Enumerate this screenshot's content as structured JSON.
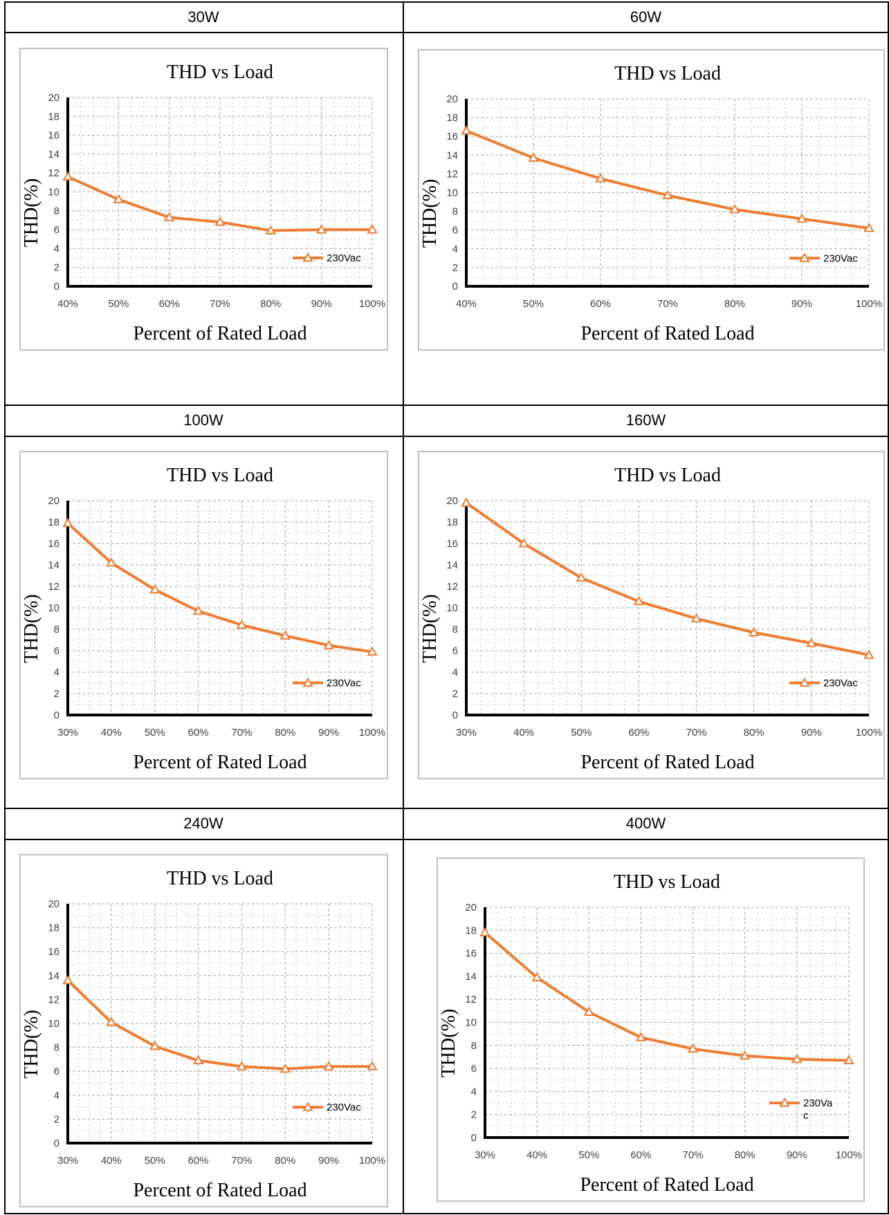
{
  "colors": {
    "series": "#ed7d31",
    "grid": "#a6a6a6",
    "axis": "#000000",
    "border": "#bfbfbf"
  },
  "cells": [
    {
      "header": "30W"
    },
    {
      "header": "60W"
    },
    {
      "header": "100W"
    },
    {
      "header": "160W"
    },
    {
      "header": "240W"
    },
    {
      "header": "400W"
    }
  ],
  "chart_data": [
    {
      "type": "line",
      "title": "THD vs Load",
      "xlabel": "Percent of Rated Load",
      "ylabel": "THD(%)",
      "categories": [
        "40%",
        "50%",
        "60%",
        "70%",
        "80%",
        "90%",
        "100%"
      ],
      "yticks": [
        "0",
        "2",
        "4",
        "6",
        "8",
        "10",
        "12",
        "14",
        "16",
        "18",
        "20"
      ],
      "ylim": [
        0,
        20
      ],
      "grid": true,
      "legend_position": "bottom-right",
      "series": [
        {
          "name": "230Vac",
          "values": [
            11.6,
            9.2,
            7.3,
            6.8,
            5.9,
            6.0,
            6.0
          ]
        }
      ]
    },
    {
      "type": "line",
      "title": "THD vs Load",
      "xlabel": "Percent of Rated Load",
      "ylabel": "THD(%)",
      "categories": [
        "40%",
        "50%",
        "60%",
        "70%",
        "80%",
        "90%",
        "100%"
      ],
      "yticks": [
        "0",
        "2",
        "4",
        "6",
        "8",
        "10",
        "12",
        "14",
        "16",
        "18",
        "20"
      ],
      "ylim": [
        0,
        20
      ],
      "grid": true,
      "legend_position": "bottom-right",
      "series": [
        {
          "name": "230Vac",
          "values": [
            16.6,
            13.7,
            11.5,
            9.7,
            8.2,
            7.2,
            6.2
          ]
        }
      ]
    },
    {
      "type": "line",
      "title": "THD vs Load",
      "xlabel": "Percent of Rated Load",
      "ylabel": "THD(%)",
      "categories": [
        "30%",
        "40%",
        "50%",
        "60%",
        "70%",
        "80%",
        "90%",
        "100%"
      ],
      "yticks": [
        "0",
        "2",
        "4",
        "6",
        "8",
        "10",
        "12",
        "14",
        "16",
        "18",
        "20"
      ],
      "ylim": [
        0,
        20
      ],
      "grid": true,
      "legend_position": "bottom-right",
      "series": [
        {
          "name": "230Vac",
          "values": [
            17.9,
            14.2,
            11.7,
            9.7,
            8.4,
            7.4,
            6.5,
            5.9
          ]
        }
      ]
    },
    {
      "type": "line",
      "title": "THD vs Load",
      "xlabel": "Percent of Rated Load",
      "ylabel": "THD(%)",
      "categories": [
        "30%",
        "40%",
        "50%",
        "60%",
        "70%",
        "80%",
        "90%",
        "100%"
      ],
      "yticks": [
        "0",
        "2",
        "4",
        "6",
        "8",
        "10",
        "12",
        "14",
        "16",
        "18",
        "20"
      ],
      "ylim": [
        0,
        20
      ],
      "grid": true,
      "legend_position": "bottom-right",
      "series": [
        {
          "name": "230Vac",
          "values": [
            19.8,
            16.0,
            12.8,
            10.6,
            9.0,
            7.7,
            6.7,
            5.6
          ]
        }
      ]
    },
    {
      "type": "line",
      "title": "THD vs Load",
      "xlabel": "Percent of Rated Load",
      "ylabel": "THD(%)",
      "categories": [
        "30%",
        "40%",
        "50%",
        "60%",
        "70%",
        "80%",
        "90%",
        "100%"
      ],
      "yticks": [
        "0",
        "2",
        "4",
        "6",
        "8",
        "10",
        "12",
        "14",
        "16",
        "18",
        "20"
      ],
      "ylim": [
        0,
        20
      ],
      "grid": true,
      "legend_position": "bottom-right",
      "series": [
        {
          "name": "230Vac",
          "values": [
            13.6,
            10.1,
            8.1,
            6.9,
            6.4,
            6.2,
            6.4,
            6.4
          ]
        }
      ]
    },
    {
      "type": "line",
      "title": "THD vs Load",
      "xlabel": "Percent of Rated Load",
      "ylabel": "THD(%)",
      "categories": [
        "30%",
        "40%",
        "50%",
        "60%",
        "70%",
        "80%",
        "90%",
        "100%"
      ],
      "yticks": [
        "0",
        "2",
        "4",
        "6",
        "8",
        "10",
        "12",
        "14",
        "16",
        "18",
        "20"
      ],
      "ylim": [
        0,
        20
      ],
      "grid": true,
      "legend_position": "right",
      "series": [
        {
          "name": "230Va c",
          "values": [
            17.8,
            13.9,
            10.9,
            8.7,
            7.7,
            7.1,
            6.8,
            6.7
          ]
        }
      ]
    }
  ]
}
